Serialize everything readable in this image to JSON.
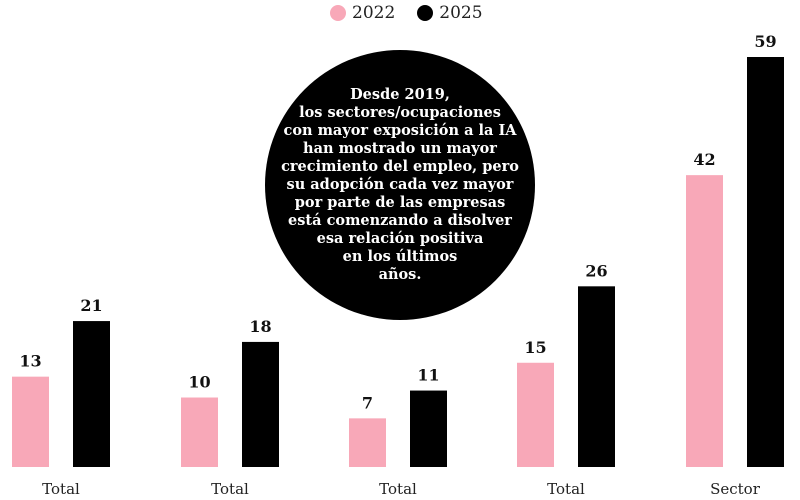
{
  "chart_data": {
    "type": "bar",
    "title": "",
    "xlabel": "",
    "ylabel": "",
    "ylim": [
      0,
      60
    ],
    "grid": false,
    "legend_position": "top-center",
    "categories": [
      "Total",
      "Total",
      "Total",
      "Total",
      "Sector"
    ],
    "series": [
      {
        "name": "2022",
        "color": "#f8a8b8",
        "values": [
          13,
          10,
          7,
          15,
          42
        ]
      },
      {
        "name": "2025",
        "color": "#000000",
        "values": [
          21,
          18,
          11,
          26,
          59
        ]
      }
    ],
    "annotation": "Desde 2019,\nlos sectores/ocupaciones\ncon mayor exposición a la IA\nhan mostrado un mayor\ncrecimiento del empleo, pero\nsu adopción cada vez mayor\npor parte de las empresas\nestá comenzando a disolver\nesa relación positiva\nen los últimos\naños."
  }
}
